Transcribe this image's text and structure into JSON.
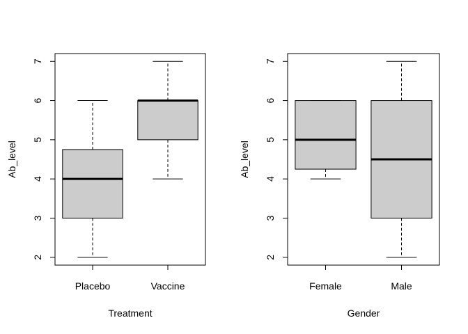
{
  "chart_data": [
    {
      "type": "box",
      "xlabel": "Treatment",
      "ylabel": "Ab_level",
      "categories": [
        "Placebo",
        "Vaccine"
      ],
      "ylim": [
        1.8,
        7.2
      ],
      "yticks": [
        "2",
        "3",
        "4",
        "5",
        "6",
        "7"
      ],
      "boxes": [
        {
          "name": "Placebo",
          "min": 2,
          "q1": 3,
          "median": 4,
          "q3": 4.75,
          "max": 6
        },
        {
          "name": "Vaccine",
          "min": 4,
          "q1": 5,
          "median": 6,
          "q3": 6,
          "max": 7
        }
      ],
      "box_fill": "#cccccc"
    },
    {
      "type": "box",
      "xlabel": "Gender",
      "ylabel": "Ab_level",
      "categories": [
        "Female",
        "Male"
      ],
      "ylim": [
        1.8,
        7.2
      ],
      "yticks": [
        "2",
        "3",
        "4",
        "5",
        "6",
        "7"
      ],
      "boxes": [
        {
          "name": "Female",
          "min": 4,
          "q1": 4.25,
          "median": 5,
          "q3": 6,
          "max": 6
        },
        {
          "name": "Male",
          "min": 2,
          "q1": 3,
          "median": 4.5,
          "q3": 6,
          "max": 7
        }
      ],
      "box_fill": "#cccccc"
    }
  ]
}
